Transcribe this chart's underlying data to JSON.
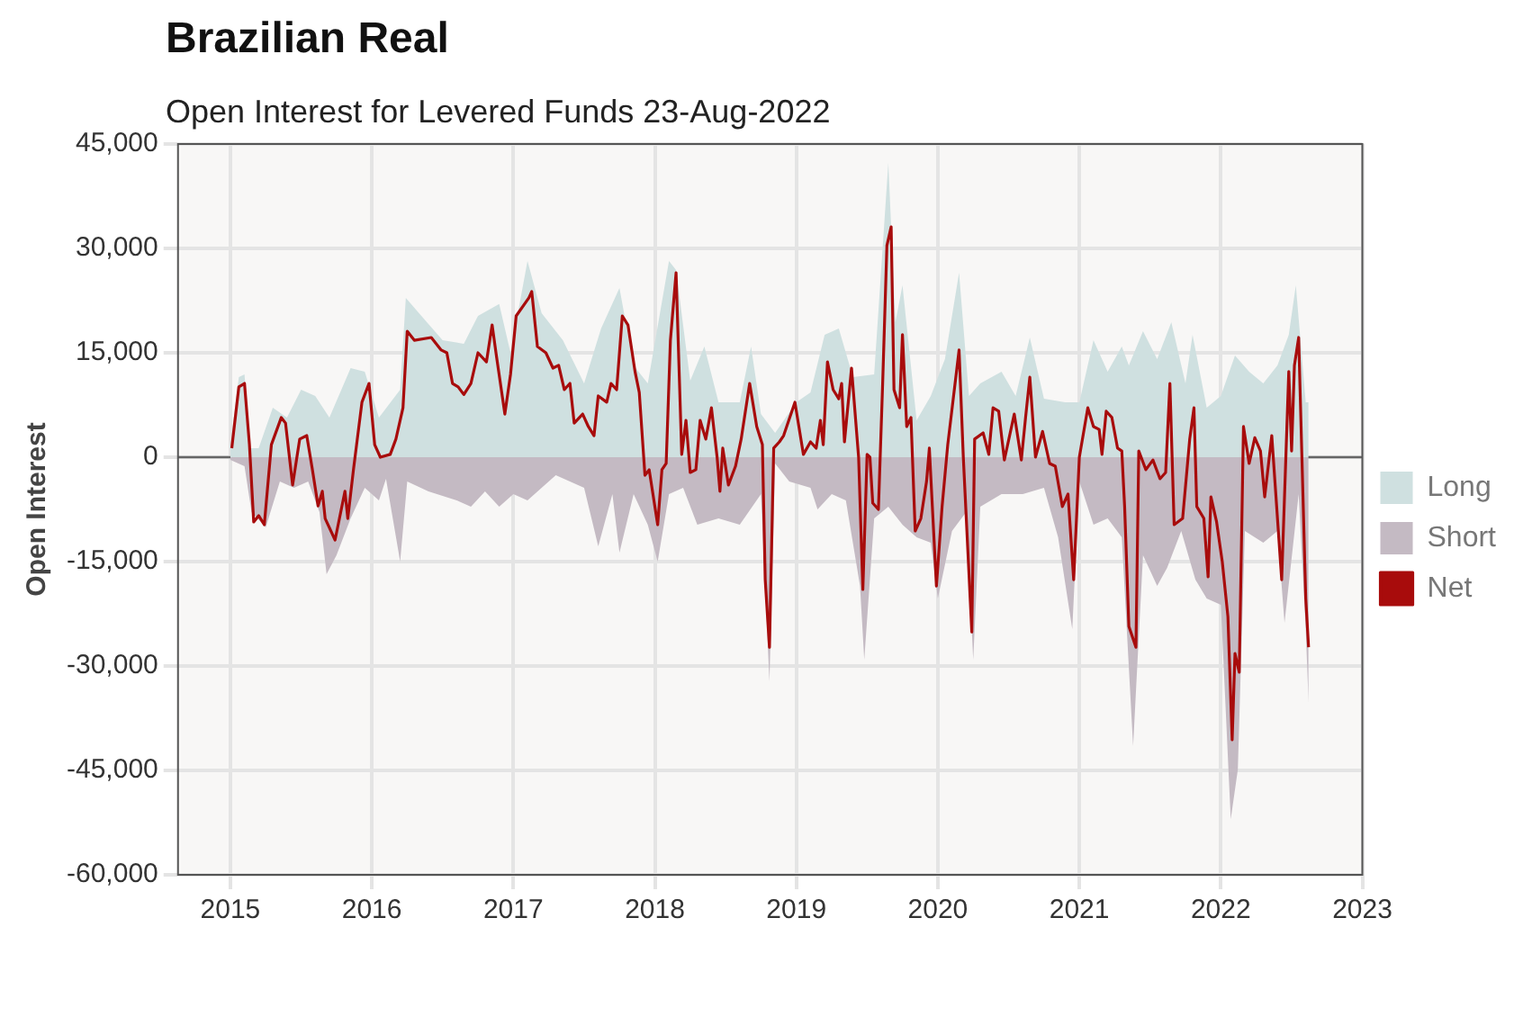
{
  "chart_data": {
    "type": "area",
    "title": "Brazilian Real",
    "subtitle": "Open Interest for Levered Funds 23-Aug-2022",
    "ylabel": "Open Interest",
    "xlim": [
      2014.63,
      2023.0
    ],
    "xticks": [
      2015,
      2016,
      2017,
      2018,
      2019,
      2020,
      2021,
      2022,
      2023
    ],
    "ylim": [
      -60000,
      45000
    ],
    "yticks": [
      {
        "value": -60000,
        "label": "-60,000"
      },
      {
        "value": -45000,
        "label": "-45,000"
      },
      {
        "value": -30000,
        "label": "-30,000"
      },
      {
        "value": -15000,
        "label": "-15,000"
      },
      0,
      {
        "value": 15000,
        "label": "15,000"
      },
      {
        "value": 30000,
        "label": "30,000"
      },
      {
        "value": 45000,
        "label": "45,000"
      }
    ],
    "grid": true,
    "legend": "right",
    "ref_lines": [
      {
        "axis": "y",
        "value": 0,
        "color": "#666666"
      }
    ],
    "series": [
      {
        "name": "Long",
        "color": "#cfe0e0",
        "x": [
          2015.0,
          2015.06,
          2015.1,
          2015.14,
          2015.2,
          2015.3,
          2015.4,
          2015.5,
          2015.6,
          2015.7,
          2015.85,
          2015.95,
          2016.05,
          2016.2,
          2016.24,
          2016.35,
          2016.5,
          2016.65,
          2016.75,
          2016.9,
          2016.98,
          2017.1,
          2017.2,
          2017.35,
          2017.5,
          2017.62,
          2017.75,
          2017.85,
          2017.95,
          2018.1,
          2018.15,
          2018.25,
          2018.35,
          2018.45,
          2018.6,
          2018.68,
          2018.75,
          2018.85,
          2019.0,
          2019.1,
          2019.2,
          2019.3,
          2019.4,
          2019.55,
          2019.65,
          2019.7,
          2019.75,
          2019.85,
          2019.95,
          2020.05,
          2020.15,
          2020.22,
          2020.3,
          2020.45,
          2020.55,
          2020.65,
          2020.75,
          2020.9,
          2021.0,
          2021.1,
          2021.2,
          2021.3,
          2021.35,
          2021.45,
          2021.55,
          2021.65,
          2021.75,
          2021.8,
          2021.9,
          2022.0,
          2022.1,
          2022.2,
          2022.3,
          2022.4,
          2022.48,
          2022.53,
          2022.6,
          2022.62
        ],
        "values": [
          1800,
          11500,
          11900,
          1300,
          1300,
          7100,
          5700,
          9700,
          8800,
          5700,
          12800,
          12300,
          5700,
          9700,
          22900,
          20300,
          16800,
          16300,
          20300,
          22000,
          15000,
          28200,
          20700,
          16800,
          10600,
          18500,
          24300,
          13200,
          10600,
          28200,
          26900,
          11000,
          15900,
          7900,
          7900,
          15900,
          6200,
          3500,
          7900,
          9300,
          17600,
          18500,
          11500,
          11900,
          42300,
          19400,
          24700,
          5300,
          8800,
          14100,
          26500,
          8800,
          10600,
          12300,
          8800,
          17200,
          8400,
          7900,
          7900,
          16800,
          12300,
          15900,
          13200,
          18100,
          14100,
          19400,
          10600,
          17600,
          7100,
          8800,
          14600,
          12300,
          10600,
          13200,
          17600,
          24700,
          7900,
          7900
        ]
      },
      {
        "name": "Short",
        "color": "#c4bac3",
        "x": [
          2015.0,
          2015.1,
          2015.15,
          2015.25,
          2015.35,
          2015.45,
          2015.55,
          2015.63,
          2015.68,
          2015.75,
          2015.85,
          2015.95,
          2016.05,
          2016.1,
          2016.2,
          2016.25,
          2016.4,
          2016.6,
          2016.7,
          2016.8,
          2016.9,
          2017.0,
          2017.1,
          2017.3,
          2017.5,
          2017.6,
          2017.7,
          2017.75,
          2017.85,
          2017.95,
          2018.02,
          2018.1,
          2018.2,
          2018.3,
          2018.45,
          2018.6,
          2018.75,
          2018.81,
          2018.85,
          2018.95,
          2019.1,
          2019.15,
          2019.25,
          2019.35,
          2019.45,
          2019.48,
          2019.55,
          2019.65,
          2019.75,
          2019.85,
          2019.95,
          2020.0,
          2020.1,
          2020.2,
          2020.25,
          2020.3,
          2020.45,
          2020.6,
          2020.75,
          2020.85,
          2020.95,
          2021.0,
          2021.1,
          2021.2,
          2021.3,
          2021.38,
          2021.45,
          2021.55,
          2021.62,
          2021.72,
          2021.82,
          2021.9,
          2022.0,
          2022.07,
          2022.12,
          2022.17,
          2022.3,
          2022.4,
          2022.45,
          2022.55,
          2022.6,
          2022.62
        ],
        "values": [
          -400,
          -1300,
          -7900,
          -10100,
          -3500,
          -4400,
          -3500,
          -7900,
          -16800,
          -14100,
          -8800,
          -4400,
          -6200,
          -3100,
          -15000,
          -3500,
          -4900,
          -6200,
          -7100,
          -4900,
          -7100,
          -5300,
          -6200,
          -2600,
          -4400,
          -12800,
          -5300,
          -13700,
          -5300,
          -9700,
          -15000,
          -5300,
          -4400,
          -9700,
          -8800,
          -9700,
          -5300,
          -32200,
          -900,
          -3500,
          -4400,
          -7500,
          -5300,
          -6200,
          -18500,
          -29100,
          -8800,
          -7100,
          -9700,
          -11500,
          -12300,
          -20300,
          -10600,
          -7900,
          -29100,
          -7100,
          -5300,
          -5300,
          -4400,
          -11500,
          -24700,
          -3500,
          -9700,
          -8800,
          -11500,
          -41500,
          -14100,
          -18500,
          -15900,
          -10600,
          -17600,
          -20300,
          -21200,
          -52000,
          -44900,
          -10600,
          -12300,
          -10600,
          -23800,
          -5300,
          -24700,
          -35300
        ]
      },
      {
        "name": "Net",
        "type": "line",
        "color": "#a80c0c",
        "x": [
          2015.01,
          2015.06,
          2015.1,
          2015.135,
          2015.165,
          2015.2,
          2015.24,
          2015.29,
          2015.36,
          2015.39,
          2015.44,
          2015.49,
          2015.54,
          2015.58,
          2015.62,
          2015.65,
          2015.67,
          2015.74,
          2015.81,
          2015.83,
          2015.87,
          2015.93,
          2015.98,
          2016.02,
          2016.06,
          2016.13,
          2016.17,
          2016.22,
          2016.25,
          2016.3,
          2016.42,
          2016.49,
          2016.53,
          2016.57,
          2016.61,
          2016.65,
          2016.7,
          2016.75,
          2016.81,
          2016.85,
          2016.88,
          2016.94,
          2016.98,
          2017.02,
          2017.11,
          2017.13,
          2017.17,
          2017.23,
          2017.28,
          2017.32,
          2017.36,
          2017.4,
          2017.43,
          2017.49,
          2017.53,
          2017.57,
          2017.6,
          2017.66,
          2017.69,
          2017.73,
          2017.77,
          2017.81,
          2017.86,
          2017.89,
          2017.93,
          2017.96,
          2018.02,
          2018.05,
          2018.08,
          2018.11,
          2018.15,
          2018.19,
          2018.22,
          2018.25,
          2018.29,
          2018.32,
          2018.36,
          2018.4,
          2018.44,
          2018.46,
          2018.48,
          2018.52,
          2018.57,
          2018.61,
          2018.67,
          2018.72,
          2018.76,
          2018.78,
          2018.81,
          2018.84,
          2018.88,
          2018.91,
          2018.99,
          2019.05,
          2019.1,
          2019.14,
          2019.17,
          2019.19,
          2019.22,
          2019.26,
          2019.3,
          2019.32,
          2019.34,
          2019.39,
          2019.44,
          2019.47,
          2019.5,
          2019.52,
          2019.54,
          2019.58,
          2019.61,
          2019.64,
          2019.67,
          2019.69,
          2019.73,
          2019.75,
          2019.78,
          2019.81,
          2019.84,
          2019.88,
          2019.92,
          2019.94,
          2019.99,
          2020.03,
          2020.07,
          2020.15,
          2020.18,
          2020.24,
          2020.26,
          2020.32,
          2020.36,
          2020.39,
          2020.43,
          2020.47,
          2020.54,
          2020.59,
          2020.62,
          2020.65,
          2020.69,
          2020.74,
          2020.79,
          2020.83,
          2020.88,
          2020.92,
          2020.96,
          2021.0,
          2021.06,
          2021.1,
          2021.14,
          2021.16,
          2021.19,
          2021.23,
          2021.27,
          2021.3,
          2021.32,
          2021.35,
          2021.4,
          2021.42,
          2021.47,
          2021.52,
          2021.57,
          2021.61,
          2021.64,
          2021.67,
          2021.73,
          2021.78,
          2021.81,
          2021.83,
          2021.88,
          2021.91,
          2021.93,
          2021.97,
          2022.01,
          2022.05,
          2022.08,
          2022.1,
          2022.13,
          2022.16,
          2022.2,
          2022.24,
          2022.28,
          2022.31,
          2022.36,
          2022.43,
          2022.48,
          2022.5,
          2022.52,
          2022.55,
          2022.6,
          2022.62
        ],
        "values": [
          1300,
          10100,
          10600,
          1800,
          -9300,
          -8400,
          -9700,
          1800,
          5700,
          4900,
          -4000,
          2600,
          3100,
          -1800,
          -7000,
          -4900,
          -8800,
          -11900,
          -4900,
          -8800,
          -1800,
          7900,
          10600,
          1800,
          0,
          400,
          2600,
          7100,
          18100,
          16800,
          17200,
          15400,
          15000,
          10600,
          10100,
          9000,
          10600,
          15000,
          13700,
          19000,
          14600,
          6200,
          11900,
          20300,
          22900,
          23800,
          15900,
          15000,
          12800,
          13200,
          9700,
          10600,
          4900,
          6200,
          4400,
          3100,
          8800,
          7900,
          10600,
          9700,
          20300,
          19000,
          12300,
          9300,
          -2600,
          -1800,
          -9700,
          -1800,
          -900,
          16800,
          26500,
          400,
          5300,
          -2200,
          -1800,
          5300,
          2600,
          7100,
          0,
          -4900,
          1300,
          -4000,
          -1300,
          2600,
          10600,
          4400,
          1800,
          -17600,
          -27300,
          1300,
          2200,
          3100,
          7900,
          400,
          2200,
          1300,
          5300,
          1800,
          13700,
          9700,
          8400,
          10600,
          2200,
          12800,
          0,
          -19000,
          400,
          0,
          -6600,
          -7500,
          10600,
          30400,
          33100,
          9700,
          7100,
          17600,
          4400,
          5700,
          -10600,
          -8800,
          -3500,
          1300,
          -18500,
          -7100,
          1800,
          15400,
          0,
          -25100,
          2600,
          3500,
          400,
          7100,
          6600,
          -400,
          6200,
          -400,
          5700,
          11500,
          0,
          3700,
          -900,
          -1300,
          -7100,
          -5300,
          -17600,
          0,
          7100,
          4400,
          4000,
          400,
          6600,
          5700,
          1300,
          900,
          -7100,
          -24300,
          -27300,
          900,
          -1800,
          -400,
          -3100,
          -2200,
          10600,
          -9700,
          -8800,
          2600,
          7100,
          -7100,
          -8800,
          -17200,
          -5700,
          -9300,
          -15000,
          -22900,
          -40600,
          -28200,
          -30900,
          4400,
          -900,
          2800,
          900,
          -5700,
          3100,
          -17600,
          12300,
          900,
          13200,
          17200,
          -20300,
          -27300
        ]
      }
    ]
  }
}
